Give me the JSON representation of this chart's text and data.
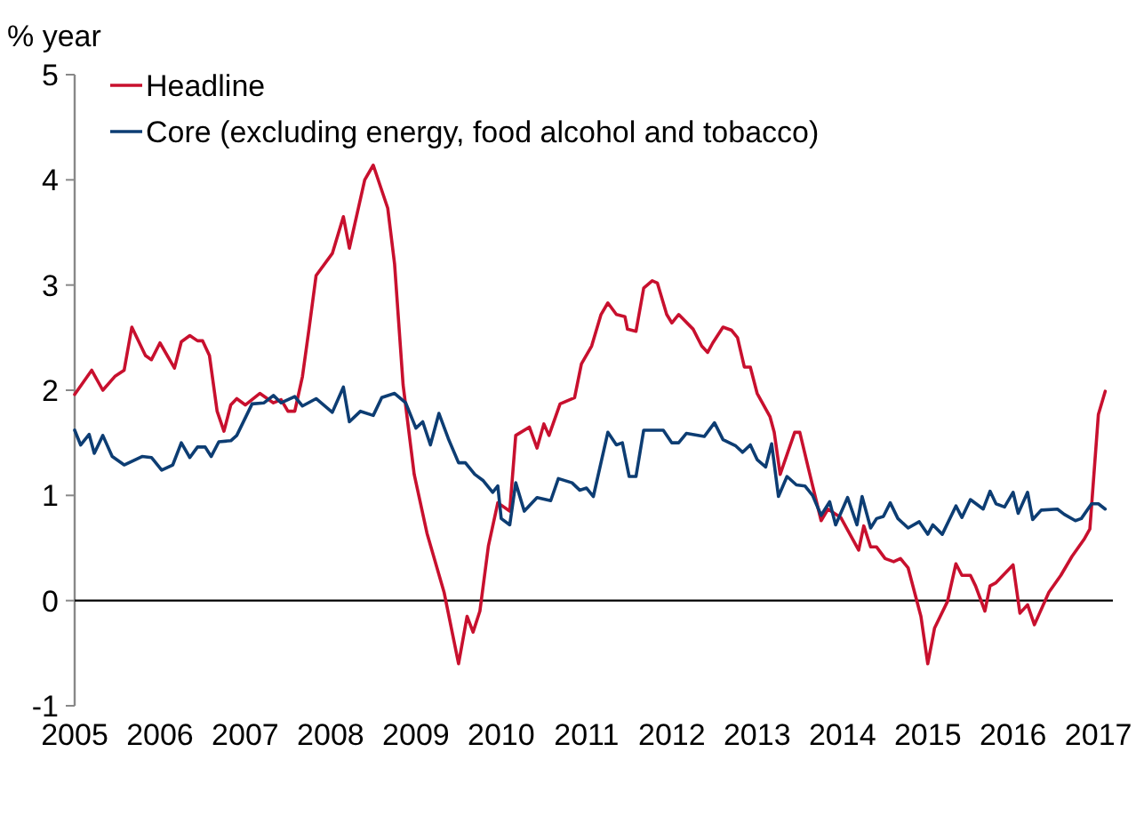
{
  "chart_data": {
    "type": "line",
    "ylabel": "% year",
    "xlim": [
      2005,
      2017.17
    ],
    "xticks": [
      2005,
      2006,
      2007,
      2008,
      2009,
      2010,
      2011,
      2012,
      2013,
      2014,
      2015,
      2016,
      2017
    ],
    "ylim": [
      -1,
      5
    ],
    "yticks": [
      -1,
      0,
      1,
      2,
      3,
      4,
      5
    ],
    "grid": false,
    "legend": "top left",
    "marker": "none",
    "line_style": "solid",
    "ref_lines": [
      {
        "axis": "y",
        "value": 0,
        "label": null,
        "color": "#000000"
      }
    ],
    "series": [
      {
        "name": "Headline",
        "color": "#c8102e",
        "x": [
          2005.0,
          2005.2,
          2005.33,
          2005.47,
          2005.58,
          2005.67,
          2005.83,
          2005.9,
          2006.0,
          2006.17,
          2006.25,
          2006.35,
          2006.44,
          2006.5,
          2006.58,
          2006.67,
          2006.75,
          2006.83,
          2006.9,
          2007.0,
          2007.17,
          2007.33,
          2007.42,
          2007.5,
          2007.58,
          2007.67,
          2007.75,
          2007.83,
          2008.02,
          2008.15,
          2008.22,
          2008.4,
          2008.5,
          2008.67,
          2008.75,
          2008.85,
          2008.98,
          2009.13,
          2009.33,
          2009.5,
          2009.6,
          2009.67,
          2009.75,
          2009.85,
          2009.96,
          2010.1,
          2010.17,
          2010.33,
          2010.42,
          2010.5,
          2010.56,
          2010.69,
          2010.86,
          2010.94,
          2011.06,
          2011.17,
          2011.25,
          2011.35,
          2011.45,
          2011.48,
          2011.58,
          2011.67,
          2011.77,
          2011.83,
          2011.94,
          2012.0,
          2012.08,
          2012.25,
          2012.35,
          2012.42,
          2012.48,
          2012.6,
          2012.7,
          2012.77,
          2012.85,
          2012.92,
          2013.0,
          2013.15,
          2013.2,
          2013.27,
          2013.44,
          2013.5,
          2013.6,
          2013.75,
          2013.83,
          2013.98,
          2014.19,
          2014.25,
          2014.33,
          2014.4,
          2014.5,
          2014.6,
          2014.68,
          2014.77,
          2014.92,
          2015.0,
          2015.08,
          2015.23,
          2015.33,
          2015.4,
          2015.5,
          2015.56,
          2015.67,
          2015.73,
          2015.8,
          2016.0,
          2016.08,
          2016.17,
          2016.25,
          2016.42,
          2016.56,
          2016.69,
          2016.83,
          2016.9,
          2017.0,
          2017.08
        ],
        "values": [
          1.96,
          2.19,
          2.0,
          2.13,
          2.19,
          2.6,
          2.33,
          2.29,
          2.45,
          2.21,
          2.46,
          2.52,
          2.47,
          2.47,
          2.33,
          1.8,
          1.61,
          1.86,
          1.92,
          1.86,
          1.97,
          1.88,
          1.91,
          1.8,
          1.8,
          2.13,
          2.6,
          3.09,
          3.3,
          3.65,
          3.35,
          4.0,
          4.14,
          3.73,
          3.2,
          2.05,
          1.2,
          0.64,
          0.08,
          -0.6,
          -0.15,
          -0.3,
          -0.1,
          0.52,
          0.93,
          0.85,
          1.57,
          1.65,
          1.45,
          1.68,
          1.57,
          1.87,
          1.93,
          2.25,
          2.42,
          2.72,
          2.83,
          2.72,
          2.7,
          2.58,
          2.56,
          2.97,
          3.04,
          3.02,
          2.72,
          2.64,
          2.72,
          2.58,
          2.42,
          2.36,
          2.45,
          2.6,
          2.57,
          2.5,
          2.22,
          2.22,
          1.97,
          1.75,
          1.6,
          1.2,
          1.6,
          1.6,
          1.26,
          0.76,
          0.87,
          0.79,
          0.48,
          0.71,
          0.51,
          0.51,
          0.4,
          0.37,
          0.4,
          0.31,
          -0.15,
          -0.6,
          -0.26,
          -0.01,
          0.35,
          0.24,
          0.24,
          0.14,
          -0.1,
          0.14,
          0.17,
          0.34,
          -0.12,
          -0.04,
          -0.23,
          0.08,
          0.24,
          0.42,
          0.58,
          0.68,
          1.77,
          1.99
        ]
      },
      {
        "name": "Core (excluding energy, food alcohol and tobacco)",
        "color": "#0d3d73",
        "x": [
          2005.0,
          2005.07,
          2005.17,
          2005.23,
          2005.33,
          2005.44,
          2005.58,
          2005.79,
          2005.9,
          2006.02,
          2006.15,
          2006.25,
          2006.35,
          2006.44,
          2006.53,
          2006.6,
          2006.69,
          2006.83,
          2006.9,
          2007.08,
          2007.22,
          2007.33,
          2007.42,
          2007.58,
          2007.67,
          2007.83,
          2008.02,
          2008.15,
          2008.22,
          2008.35,
          2008.5,
          2008.6,
          2008.75,
          2008.88,
          2009.0,
          2009.08,
          2009.17,
          2009.27,
          2009.38,
          2009.5,
          2009.58,
          2009.69,
          2009.79,
          2009.9,
          2009.96,
          2010.0,
          2010.1,
          2010.17,
          2010.27,
          2010.42,
          2010.58,
          2010.67,
          2010.83,
          2010.92,
          2011.0,
          2011.08,
          2011.25,
          2011.35,
          2011.42,
          2011.5,
          2011.58,
          2011.67,
          2011.9,
          2012.0,
          2012.08,
          2012.17,
          2012.38,
          2012.5,
          2012.6,
          2012.75,
          2012.83,
          2012.92,
          2013.0,
          2013.1,
          2013.17,
          2013.25,
          2013.35,
          2013.46,
          2013.56,
          2013.65,
          2013.75,
          2013.85,
          2013.92,
          2014.06,
          2014.17,
          2014.23,
          2014.33,
          2014.4,
          2014.48,
          2014.56,
          2014.65,
          2014.77,
          2014.9,
          2015.0,
          2015.06,
          2015.17,
          2015.33,
          2015.4,
          2015.5,
          2015.65,
          2015.73,
          2015.8,
          2015.9,
          2016.0,
          2016.06,
          2016.17,
          2016.23,
          2016.33,
          2016.52,
          2016.6,
          2016.73,
          2016.8,
          2016.92,
          2017.0,
          2017.08
        ],
        "values": [
          1.62,
          1.48,
          1.58,
          1.4,
          1.57,
          1.37,
          1.29,
          1.37,
          1.36,
          1.24,
          1.29,
          1.5,
          1.36,
          1.46,
          1.46,
          1.37,
          1.51,
          1.52,
          1.57,
          1.87,
          1.88,
          1.95,
          1.88,
          1.94,
          1.85,
          1.92,
          1.79,
          2.03,
          1.7,
          1.8,
          1.76,
          1.93,
          1.97,
          1.88,
          1.64,
          1.7,
          1.48,
          1.78,
          1.54,
          1.31,
          1.31,
          1.2,
          1.14,
          1.03,
          1.09,
          0.78,
          0.72,
          1.12,
          0.85,
          0.98,
          0.95,
          1.16,
          1.12,
          1.05,
          1.07,
          0.99,
          1.6,
          1.48,
          1.5,
          1.18,
          1.18,
          1.62,
          1.62,
          1.5,
          1.5,
          1.59,
          1.56,
          1.69,
          1.53,
          1.47,
          1.41,
          1.48,
          1.34,
          1.27,
          1.49,
          0.99,
          1.18,
          1.1,
          1.09,
          1.0,
          0.81,
          0.94,
          0.72,
          0.98,
          0.72,
          0.99,
          0.69,
          0.78,
          0.8,
          0.93,
          0.78,
          0.69,
          0.75,
          0.63,
          0.72,
          0.63,
          0.9,
          0.79,
          0.96,
          0.87,
          1.04,
          0.92,
          0.89,
          1.03,
          0.83,
          1.03,
          0.77,
          0.86,
          0.87,
          0.82,
          0.76,
          0.78,
          0.92,
          0.92,
          0.87
        ]
      }
    ]
  }
}
